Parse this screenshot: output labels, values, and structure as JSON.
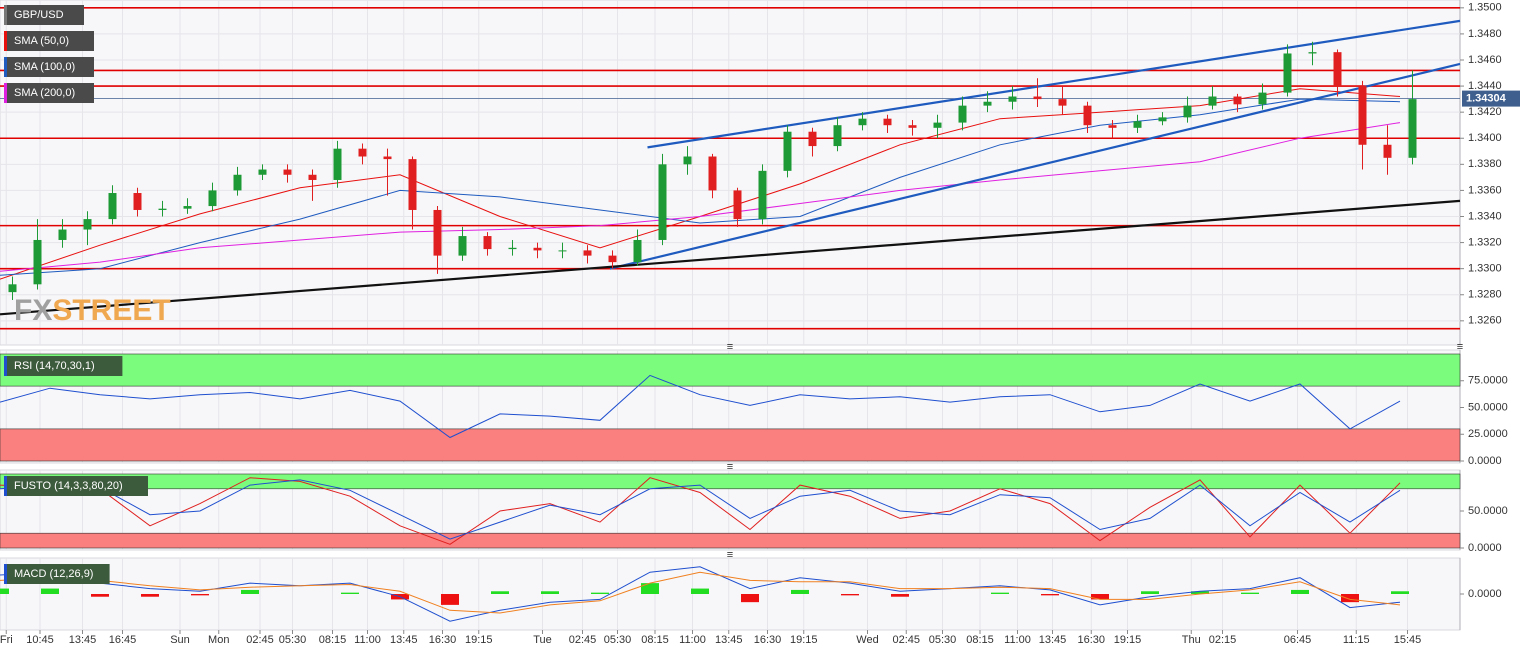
{
  "chart_data": [
    {
      "type": "candlestick",
      "symbol": "GBP/USD",
      "watermark": [
        "FX",
        "STREET"
      ],
      "xlim": [
        0,
        116.8
      ],
      "ylim": [
        1.3243,
        1.3506
      ],
      "yticks": [
        {
          "value": 1.326,
          "label": "1.3260"
        },
        {
          "value": 1.328,
          "label": "1.3280"
        },
        {
          "value": 1.33,
          "label": "1.3300"
        },
        {
          "value": 1.332,
          "label": "1.3320"
        },
        {
          "value": 1.334,
          "label": "1.3340"
        },
        {
          "value": 1.336,
          "label": "1.3360"
        },
        {
          "value": 1.338,
          "label": "1.3380"
        },
        {
          "value": 1.34,
          "label": "1.3400"
        },
        {
          "value": 1.342,
          "label": "1.3420"
        },
        {
          "value": 1.344,
          "label": "1.3440"
        },
        {
          "value": 1.346,
          "label": "1.3460"
        },
        {
          "value": 1.348,
          "label": "1.3480"
        },
        {
          "value": 1.35,
          "label": "1.3500"
        }
      ],
      "grid": true,
      "up_color": "#1d9a35",
      "down_color": "#e02020",
      "x": [
        1,
        3,
        5,
        7,
        9,
        11,
        13,
        15,
        17,
        19,
        21,
        23,
        25,
        27,
        29,
        31,
        33,
        35,
        37,
        39,
        41,
        43,
        45,
        47,
        49,
        51,
        53,
        55,
        57,
        59,
        61,
        63,
        65,
        67,
        69,
        71,
        73,
        75,
        77,
        79,
        81,
        83,
        85,
        87,
        89,
        91,
        93,
        95,
        97,
        99,
        101,
        103,
        105,
        107,
        109,
        111,
        113
      ],
      "open": [
        1.3282,
        1.3288,
        1.3322,
        1.333,
        1.3338,
        1.3358,
        1.3345,
        1.3346,
        1.3348,
        1.336,
        1.3372,
        1.3376,
        1.3372,
        1.3368,
        1.3392,
        1.3386,
        1.3384,
        1.3345,
        1.331,
        1.3325,
        1.3315,
        1.3316,
        1.3314,
        1.3314,
        1.331,
        1.3305,
        1.3322,
        1.338,
        1.3386,
        1.336,
        1.3338,
        1.3375,
        1.3405,
        1.3394,
        1.341,
        1.3415,
        1.341,
        1.3408,
        1.3412,
        1.3425,
        1.3428,
        1.3432,
        1.343,
        1.3425,
        1.341,
        1.3408,
        1.3413,
        1.3416,
        1.3425,
        1.3432,
        1.3426,
        1.3435,
        1.3465,
        1.3466,
        1.344,
        1.3395,
        1.3385
      ],
      "high": [
        1.3294,
        1.3338,
        1.3338,
        1.3344,
        1.3364,
        1.3362,
        1.3352,
        1.3354,
        1.3366,
        1.3378,
        1.338,
        1.338,
        1.3376,
        1.3398,
        1.3396,
        1.3392,
        1.3386,
        1.3348,
        1.3332,
        1.3328,
        1.3322,
        1.332,
        1.332,
        1.3318,
        1.3314,
        1.333,
        1.3388,
        1.3394,
        1.3388,
        1.3362,
        1.338,
        1.341,
        1.3408,
        1.3416,
        1.342,
        1.3418,
        1.3414,
        1.3418,
        1.3432,
        1.3436,
        1.344,
        1.3446,
        1.344,
        1.3428,
        1.3414,
        1.3418,
        1.342,
        1.3432,
        1.344,
        1.3434,
        1.3442,
        1.3472,
        1.3474,
        1.3468,
        1.3444,
        1.341,
        1.3452
      ],
      "low": [
        1.3276,
        1.3284,
        1.3316,
        1.3318,
        1.3334,
        1.334,
        1.334,
        1.3342,
        1.3344,
        1.3356,
        1.3368,
        1.3366,
        1.3352,
        1.3362,
        1.338,
        1.3356,
        1.333,
        1.3296,
        1.3306,
        1.331,
        1.331,
        1.3308,
        1.3308,
        1.3304,
        1.33,
        1.3302,
        1.3318,
        1.3372,
        1.3354,
        1.3332,
        1.3334,
        1.337,
        1.3386,
        1.339,
        1.3406,
        1.3404,
        1.3402,
        1.34,
        1.3406,
        1.342,
        1.3422,
        1.3424,
        1.3418,
        1.3404,
        1.34,
        1.3404,
        1.341,
        1.3412,
        1.3422,
        1.342,
        1.3422,
        1.3432,
        1.3456,
        1.3432,
        1.3376,
        1.3372,
        1.338
      ],
      "close": [
        1.3288,
        1.3322,
        1.333,
        1.3338,
        1.3358,
        1.3345,
        1.3346,
        1.3348,
        1.336,
        1.3372,
        1.3376,
        1.3372,
        1.3368,
        1.3392,
        1.3386,
        1.3384,
        1.3345,
        1.331,
        1.3325,
        1.3315,
        1.3316,
        1.3314,
        1.3314,
        1.331,
        1.3305,
        1.3322,
        1.338,
        1.3386,
        1.336,
        1.3338,
        1.3375,
        1.3405,
        1.3394,
        1.341,
        1.3415,
        1.341,
        1.3408,
        1.3412,
        1.3425,
        1.3428,
        1.3432,
        1.343,
        1.3425,
        1.341,
        1.3408,
        1.3413,
        1.3416,
        1.3425,
        1.3432,
        1.3426,
        1.3435,
        1.3465,
        1.3466,
        1.344,
        1.3395,
        1.3385,
        1.343
      ],
      "overlay_x": [
        0,
        8,
        16,
        24,
        32,
        40,
        48,
        56,
        64,
        72,
        80,
        88,
        96,
        104,
        112
      ],
      "overlays": [
        {
          "name": "SMA (50,0)",
          "color": "#e8100f",
          "values": [
            1.3292,
            1.3318,
            1.3342,
            1.3362,
            1.3372,
            1.334,
            1.3316,
            1.334,
            1.3365,
            1.3395,
            1.3415,
            1.342,
            1.3425,
            1.3438,
            1.3432
          ]
        },
        {
          "name": "SMA (100,0)",
          "color": "#1f5bbf",
          "values": [
            1.3295,
            1.33,
            1.332,
            1.3338,
            1.336,
            1.3355,
            1.3345,
            1.3335,
            1.334,
            1.337,
            1.3395,
            1.341,
            1.3418,
            1.343,
            1.3428
          ]
        },
        {
          "name": "SMA (200,0)",
          "color": "#e020e0",
          "values": [
            1.3298,
            1.3305,
            1.3316,
            1.3322,
            1.3328,
            1.333,
            1.3333,
            1.334,
            1.335,
            1.336,
            1.3368,
            1.3375,
            1.3382,
            1.34,
            1.3412
          ]
        }
      ],
      "levels": [
        1.35,
        1.3452,
        1.344,
        1.34,
        1.3333,
        1.33,
        1.3254
      ],
      "level_color": "#e00000",
      "trendlines": [
        {
          "color": "#1f5bbf",
          "x": [
            51.8,
            116.8
          ],
          "y": [
            1.3393,
            1.349
          ]
        },
        {
          "color": "#1f5bbf",
          "x": [
            48.8,
            116.8
          ],
          "y": [
            1.33,
            1.3457
          ]
        },
        {
          "color": "#111111",
          "x": [
            0,
            116.8
          ],
          "y": [
            1.3265,
            1.3352
          ]
        }
      ],
      "last_price": 1.34304,
      "last_price_color": "#3f5f8f"
    },
    {
      "type": "line",
      "title": "RSI (14,70,30,1)",
      "xlim": [
        0,
        116.8
      ],
      "ylim": [
        0,
        100
      ],
      "yticks": [
        {
          "value": 0,
          "label": "0.0000"
        },
        {
          "value": 25,
          "label": "25.0000"
        },
        {
          "value": 50,
          "label": "50.0000"
        },
        {
          "value": 75,
          "label": "75.0000"
        }
      ],
      "bands": [
        [
          70,
          100
        ],
        [
          0,
          30
        ]
      ],
      "band_colors": [
        "#7cfc7c",
        "#fa7f7f"
      ],
      "x": [
        0,
        4,
        8,
        12,
        16,
        20,
        24,
        28,
        32,
        36,
        40,
        44,
        48,
        52,
        56,
        60,
        64,
        68,
        72,
        76,
        80,
        84,
        88,
        92,
        96,
        100,
        104,
        108,
        112
      ],
      "series": [
        {
          "color": "#1f4fcf",
          "values": [
            55,
            68,
            62,
            58,
            62,
            64,
            58,
            66,
            56,
            22,
            44,
            42,
            38,
            80,
            62,
            52,
            62,
            58,
            60,
            55,
            60,
            62,
            46,
            52,
            72,
            56,
            72,
            30,
            56
          ]
        }
      ]
    },
    {
      "type": "line",
      "title": "FUSTO (14,3,3,80,20)",
      "xlim": [
        0,
        116.8
      ],
      "ylim": [
        0,
        100
      ],
      "yticks": [
        {
          "value": 0,
          "label": "0.0000"
        },
        {
          "value": 50,
          "label": "50.0000"
        }
      ],
      "bands": [
        [
          80,
          100
        ],
        [
          0,
          20
        ]
      ],
      "band_colors": [
        "#7cfc7c",
        "#fa7f7f"
      ],
      "x": [
        0,
        4,
        8,
        12,
        16,
        20,
        24,
        28,
        32,
        36,
        40,
        44,
        48,
        52,
        56,
        60,
        64,
        68,
        72,
        76,
        80,
        84,
        88,
        92,
        96,
        100,
        104,
        108,
        112
      ],
      "series": [
        {
          "color": "#e02020",
          "values": [
            85,
            82,
            80,
            30,
            60,
            95,
            90,
            70,
            30,
            5,
            50,
            60,
            35,
            95,
            75,
            25,
            85,
            70,
            40,
            50,
            80,
            60,
            10,
            55,
            92,
            15,
            85,
            20,
            88
          ]
        },
        {
          "color": "#1f4fcf",
          "values": [
            80,
            85,
            82,
            45,
            50,
            85,
            92,
            78,
            45,
            12,
            35,
            58,
            45,
            80,
            85,
            40,
            70,
            78,
            50,
            45,
            72,
            68,
            25,
            40,
            85,
            30,
            75,
            35,
            78
          ]
        }
      ]
    },
    {
      "type": "macd",
      "title": "MACD (12,26,9)",
      "xlim": [
        0,
        116.8
      ],
      "ylim": [
        -0.0025,
        0.0025
      ],
      "yticks": [
        {
          "value": 0,
          "label": "0.0000"
        }
      ],
      "x": [
        0,
        4,
        8,
        12,
        16,
        20,
        24,
        28,
        32,
        36,
        40,
        44,
        48,
        52,
        56,
        60,
        64,
        68,
        72,
        76,
        80,
        84,
        88,
        92,
        96,
        100,
        104,
        108,
        112
      ],
      "series": [
        {
          "color": "#1f4fcf",
          "values": [
            0.0014,
            0.0016,
            0.0008,
            0.0004,
            0.0002,
            0.0008,
            0.0006,
            0.0008,
            -0.0002,
            -0.002,
            -0.0012,
            -0.0006,
            -0.0004,
            0.0016,
            0.002,
            0.0004,
            0.0012,
            0.0008,
            0.0002,
            0.0004,
            0.0006,
            0.0003,
            -0.0008,
            -0.0002,
            0.0002,
            0.0004,
            0.0012,
            -0.001,
            -0.0006
          ]
        },
        {
          "color": "#f08020",
          "values": [
            0.001,
            0.0012,
            0.001,
            0.0006,
            0.0003,
            0.0005,
            0.0006,
            0.0007,
            0.0002,
            -0.0012,
            -0.0014,
            -0.0008,
            -0.0005,
            0.0008,
            0.0016,
            0.001,
            0.0009,
            0.0009,
            0.0004,
            0.0004,
            0.0005,
            0.0004,
            -0.0004,
            -0.0004,
            0,
            0.0003,
            0.0009,
            -0.0004,
            -0.0008
          ]
        }
      ],
      "histogram": [
        0.0004,
        0.0004,
        -0.0002,
        -0.0002,
        -0.0001,
        0.0003,
        0,
        0.0001,
        -0.0004,
        -0.0008,
        0.0002,
        0.0002,
        0.0001,
        0.0008,
        0.0004,
        -0.0006,
        0.0003,
        -0.0001,
        -0.0002,
        0,
        0.0001,
        -0.0001,
        -0.0004,
        0.0002,
        0.0002,
        0.0001,
        0.0003,
        -0.0006,
        0.0002
      ],
      "histogram_colors": [
        "#22dd22",
        "#ee1111"
      ],
      "xticks": [
        {
          "value": 0.5,
          "label": "Fri"
        },
        {
          "value": 3.2,
          "label": "10:45"
        },
        {
          "value": 6.6,
          "label": "13:45"
        },
        {
          "value": 9.8,
          "label": "16:45"
        },
        {
          "value": 14.4,
          "label": "Sun"
        },
        {
          "value": 17.5,
          "label": "Mon"
        },
        {
          "value": 20.8,
          "label": "02:45"
        },
        {
          "value": 23.4,
          "label": "05:30"
        },
        {
          "value": 26.6,
          "label": "08:15"
        },
        {
          "value": 29.4,
          "label": "11:00"
        },
        {
          "value": 32.3,
          "label": "13:45"
        },
        {
          "value": 35.4,
          "label": "16:30"
        },
        {
          "value": 38.3,
          "label": "19:15"
        },
        {
          "value": 43.4,
          "label": "Tue"
        },
        {
          "value": 46.6,
          "label": "02:45"
        },
        {
          "value": 49.4,
          "label": "05:30"
        },
        {
          "value": 52.4,
          "label": "08:15"
        },
        {
          "value": 55.4,
          "label": "11:00"
        },
        {
          "value": 58.3,
          "label": "13:45"
        },
        {
          "value": 61.4,
          "label": "16:30"
        },
        {
          "value": 64.3,
          "label": "19:15"
        },
        {
          "value": 69.4,
          "label": "Wed"
        },
        {
          "value": 72.5,
          "label": "02:45"
        },
        {
          "value": 75.4,
          "label": "05:30"
        },
        {
          "value": 78.4,
          "label": "08:15"
        },
        {
          "value": 81.4,
          "label": "11:00"
        },
        {
          "value": 84.2,
          "label": "13:45"
        },
        {
          "value": 87.3,
          "label": "16:30"
        },
        {
          "value": 90.2,
          "label": "19:15"
        },
        {
          "value": 95.3,
          "label": "Thu"
        },
        {
          "value": 97.8,
          "label": "02:15"
        },
        {
          "value": 103.8,
          "label": "06:45"
        },
        {
          "value": 108.5,
          "label": "11:15"
        },
        {
          "value": 112.6,
          "label": "15:45"
        }
      ]
    }
  ]
}
